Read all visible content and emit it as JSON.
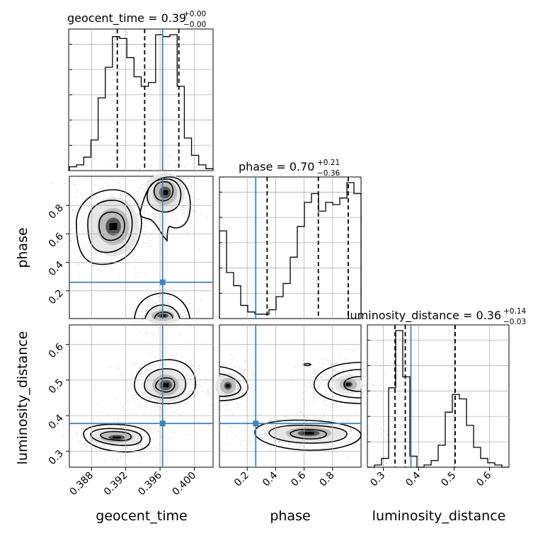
{
  "chart_data": {
    "type": "corner",
    "parameters": [
      "geocent_time",
      "phase",
      "luminosity_distance"
    ],
    "truths": {
      "geocent_time": 0.3963,
      "phase": 0.26,
      "luminosity_distance": 0.378
    },
    "ranges": {
      "geocent_time": [
        0.3854,
        0.4022
      ],
      "phase": [
        0.005,
        1.0
      ],
      "luminosity_distance": [
        0.255,
        0.655
      ]
    },
    "grid": true,
    "titles": [
      {
        "param": "geocent_time",
        "text": "geocent_time = 0.39",
        "sup": "+0.00",
        "sub": "−0.00"
      },
      {
        "param": "phase",
        "text": "phase = 0.70",
        "sup": "+0.21",
        "sub": "−0.36"
      },
      {
        "param": "luminosity_distance",
        "text": "luminosity_distance = 0.36",
        "sup": "+0.14",
        "sub": "−0.03"
      }
    ],
    "axis_labels": {
      "geocent_time": "geocent_time",
      "phase": "phase",
      "luminosity_distance": "luminosity_distance"
    },
    "ticks": {
      "geocent_time": [
        "0.388",
        "0.392",
        "0.396",
        "0.400"
      ],
      "phase": [
        "0.2",
        "0.4",
        "0.6",
        "0.8"
      ],
      "luminosity_distance": [
        "0.3",
        "0.4",
        "0.5",
        "0.6"
      ]
    },
    "marginals": {
      "geocent_time": {
        "bins": [
          0.3854,
          0.38624,
          0.38708,
          0.38792,
          0.38876,
          0.3896,
          0.39044,
          0.39128,
          0.39212,
          0.39296,
          0.3938,
          0.39464,
          0.39548,
          0.39632,
          0.39716,
          0.398,
          0.39884,
          0.39968,
          0.40052,
          0.40136,
          0.4022
        ],
        "counts": [
          2,
          3,
          7,
          16,
          38,
          54,
          70,
          69,
          59,
          49,
          44,
          46,
          71,
          70,
          71,
          44,
          17,
          8,
          3,
          1
        ],
        "quantiles": [
          0.391,
          0.3942,
          0.3982
        ]
      },
      "phase": {
        "bins": [
          0.005,
          0.05475,
          0.1045,
          0.15425,
          0.204,
          0.25375,
          0.3035,
          0.35325,
          0.403,
          0.45275,
          0.5025,
          0.55225,
          0.602,
          0.65175,
          0.7015,
          0.75125,
          0.801,
          0.85075,
          0.9005,
          0.95025,
          1.0
        ],
        "counts": [
          40,
          21,
          15,
          6,
          3,
          2,
          2,
          4,
          10,
          16,
          28,
          42,
          53,
          57,
          49,
          53,
          52,
          55,
          62,
          57
        ],
        "quantiles": [
          0.34,
          0.7,
          0.91
        ]
      },
      "luminosity_distance": {
        "bins": [
          0.255,
          0.275,
          0.295,
          0.315,
          0.335,
          0.355,
          0.375,
          0.395,
          0.415,
          0.435,
          0.455,
          0.475,
          0.495,
          0.515,
          0.535,
          0.555,
          0.575,
          0.595,
          0.615,
          0.635,
          0.655
        ],
        "counts": [
          0,
          1,
          4,
          36,
          62,
          41,
          5,
          0,
          1,
          3,
          10,
          25,
          33,
          31,
          19,
          9,
          4,
          2,
          1,
          0
        ],
        "quantiles": [
          0.333,
          0.362,
          0.503
        ]
      }
    }
  }
}
